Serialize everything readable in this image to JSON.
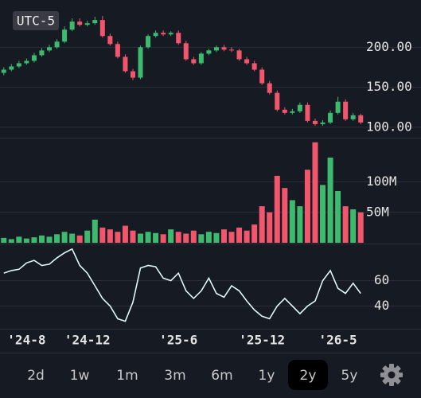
{
  "timezone": "UTC-5",
  "range_buttons": [
    "2d",
    "1w",
    "1m",
    "3m",
    "6m",
    "1y",
    "2y",
    "5y"
  ],
  "selected_range": "2y",
  "disabled_ranges": [
    "2d"
  ],
  "chart_data": [
    {
      "type": "candlestick",
      "categories": [
        null,
        null,
        null,
        "'24-8",
        null,
        null,
        null,
        null,
        null,
        null,
        null,
        "'24-12",
        null,
        null,
        null,
        null,
        null,
        null,
        null,
        null,
        null,
        null,
        null,
        "'25-6",
        null,
        null,
        null,
        null,
        null,
        null,
        null,
        null,
        null,
        null,
        "'25-12",
        null,
        null,
        null,
        null,
        null,
        null,
        null,
        null,
        null,
        "'26-5",
        null,
        null,
        null
      ],
      "open": [
        168,
        172,
        176,
        180,
        183,
        190,
        196,
        200,
        207,
        222,
        232,
        228,
        230,
        234,
        214,
        204,
        188,
        170,
        162,
        200,
        214,
        218,
        216,
        218,
        205,
        185,
        180,
        192,
        196,
        200,
        197,
        196,
        185,
        180,
        172,
        155,
        143,
        122,
        118,
        120,
        128,
        108,
        104,
        106,
        118,
        132,
        110,
        115
      ],
      "high": [
        175,
        179,
        183,
        186,
        193,
        199,
        203,
        210,
        226,
        236,
        236,
        233,
        238,
        239,
        217,
        207,
        191,
        173,
        202,
        216,
        221,
        221,
        220,
        221,
        208,
        188,
        194,
        198,
        202,
        203,
        200,
        198,
        188,
        183,
        175,
        158,
        146,
        125,
        123,
        131,
        131,
        111,
        109,
        121,
        138,
        135,
        118,
        117
      ],
      "low": [
        165,
        170,
        174,
        178,
        181,
        188,
        194,
        198,
        205,
        220,
        226,
        226,
        228,
        212,
        202,
        186,
        168,
        159,
        160,
        198,
        212,
        214,
        214,
        203,
        183,
        178,
        178,
        190,
        194,
        195,
        194,
        183,
        178,
        170,
        153,
        141,
        120,
        116,
        116,
        118,
        106,
        102,
        102,
        104,
        116,
        108,
        108,
        104
      ],
      "close": [
        172,
        176,
        180,
        183,
        190,
        196,
        200,
        207,
        222,
        232,
        228,
        230,
        234,
        214,
        204,
        188,
        170,
        162,
        200,
        214,
        218,
        216,
        218,
        205,
        185,
        180,
        192,
        196,
        200,
        197,
        196,
        185,
        180,
        172,
        155,
        143,
        122,
        118,
        120,
        128,
        108,
        104,
        106,
        118,
        132,
        110,
        115,
        106
      ],
      "up_color": "#3dba6e",
      "down_color": "#f2566c",
      "ylim": [
        88,
        257
      ],
      "yticks": [
        {
          "value": 100,
          "label": "100.00"
        },
        {
          "value": 150,
          "label": "150.00"
        },
        {
          "value": 200,
          "label": "200.00"
        }
      ],
      "grid": true
    },
    {
      "type": "bar",
      "values": [
        8,
        6,
        10,
        7,
        9,
        12,
        10,
        14,
        18,
        15,
        12,
        20,
        38,
        25,
        22,
        18,
        28,
        20,
        15,
        18,
        16,
        14,
        22,
        18,
        15,
        20,
        14,
        18,
        16,
        22,
        18,
        25,
        20,
        30,
        60,
        50,
        110,
        90,
        70,
        60,
        120,
        165,
        95,
        140,
        85,
        60,
        55,
        50
      ],
      "ylim": [
        0,
        170
      ],
      "yticks": [
        {
          "value": 50,
          "label": "50M"
        },
        {
          "value": 100,
          "label": "100M"
        }
      ],
      "grid": true
    },
    {
      "type": "line",
      "values": [
        66,
        68,
        69,
        74,
        76,
        72,
        73,
        78,
        82,
        85,
        72,
        66,
        56,
        46,
        40,
        30,
        28,
        43,
        70,
        72,
        71,
        62,
        60,
        66,
        52,
        46,
        52,
        62,
        50,
        47,
        56,
        52,
        44,
        37,
        32,
        30,
        40,
        46,
        40,
        34,
        40,
        44,
        60,
        68,
        54,
        50,
        58,
        50
      ],
      "color": "#dff6f6",
      "ylim": [
        24,
        88
      ],
      "yticks": [
        40,
        60
      ],
      "grid": true
    }
  ]
}
